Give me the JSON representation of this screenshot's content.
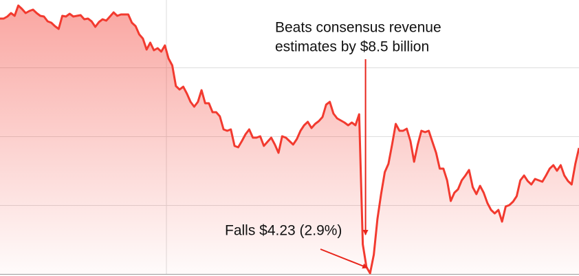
{
  "chart_data": {
    "type": "area",
    "values": [
      3.71,
      3.71,
      3.74,
      3.79,
      3.75,
      3.9,
      3.85,
      3.79,
      3.82,
      3.84,
      3.79,
      3.75,
      3.74,
      3.67,
      3.65,
      3.6,
      3.56,
      3.75,
      3.74,
      3.78,
      3.74,
      3.75,
      3.76,
      3.7,
      3.71,
      3.67,
      3.59,
      3.66,
      3.7,
      3.68,
      3.74,
      3.8,
      3.75,
      3.77,
      3.77,
      3.77,
      3.65,
      3.6,
      3.48,
      3.42,
      3.26,
      3.36,
      3.25,
      3.28,
      3.23,
      3.32,
      3.13,
      3.03,
      2.73,
      2.68,
      2.72,
      2.62,
      2.5,
      2.43,
      2.5,
      2.67,
      2.48,
      2.48,
      2.35,
      2.35,
      2.29,
      2.1,
      2.08,
      2.1,
      1.86,
      1.84,
      1.93,
      2.03,
      2.1,
      1.98,
      1.98,
      2.0,
      1.86,
      1.92,
      1.98,
      1.88,
      1.76,
      2.0,
      1.98,
      1.93,
      1.88,
      1.96,
      2.08,
      2.16,
      2.21,
      2.12,
      2.18,
      2.22,
      2.28,
      2.46,
      2.5,
      2.33,
      2.26,
      2.23,
      2.2,
      2.16,
      2.2,
      2.16,
      2.32,
      0.43,
      0.1,
      0.01,
      0.28,
      0.8,
      1.16,
      1.48,
      1.6,
      1.88,
      2.18,
      2.08,
      2.08,
      2.11,
      1.93,
      1.63,
      1.88,
      2.08,
      2.06,
      2.08,
      1.92,
      1.76,
      1.53,
      1.53,
      1.36,
      1.06,
      1.18,
      1.23,
      1.36,
      1.43,
      1.51,
      1.26,
      1.16,
      1.28,
      1.18,
      1.03,
      0.93,
      0.88,
      0.93,
      0.76,
      0.98,
      1.0,
      1.05,
      1.13,
      1.36,
      1.43,
      1.35,
      1.3,
      1.38,
      1.36,
      1.34,
      1.43,
      1.53,
      1.58,
      1.5,
      1.58,
      1.43,
      1.35,
      1.3,
      1.6,
      1.83
    ],
    "color": "#f23a2f",
    "ylim": [
      0,
      3.98
    ],
    "yticks": [
      1,
      2,
      3
    ],
    "grid": true,
    "annotations": [
      {
        "text": [
          "Beats consensus revenue",
          "estimates by $8.5 billion"
        ]
      },
      {
        "text": "Falls $4.23 (2.9%)"
      }
    ]
  }
}
